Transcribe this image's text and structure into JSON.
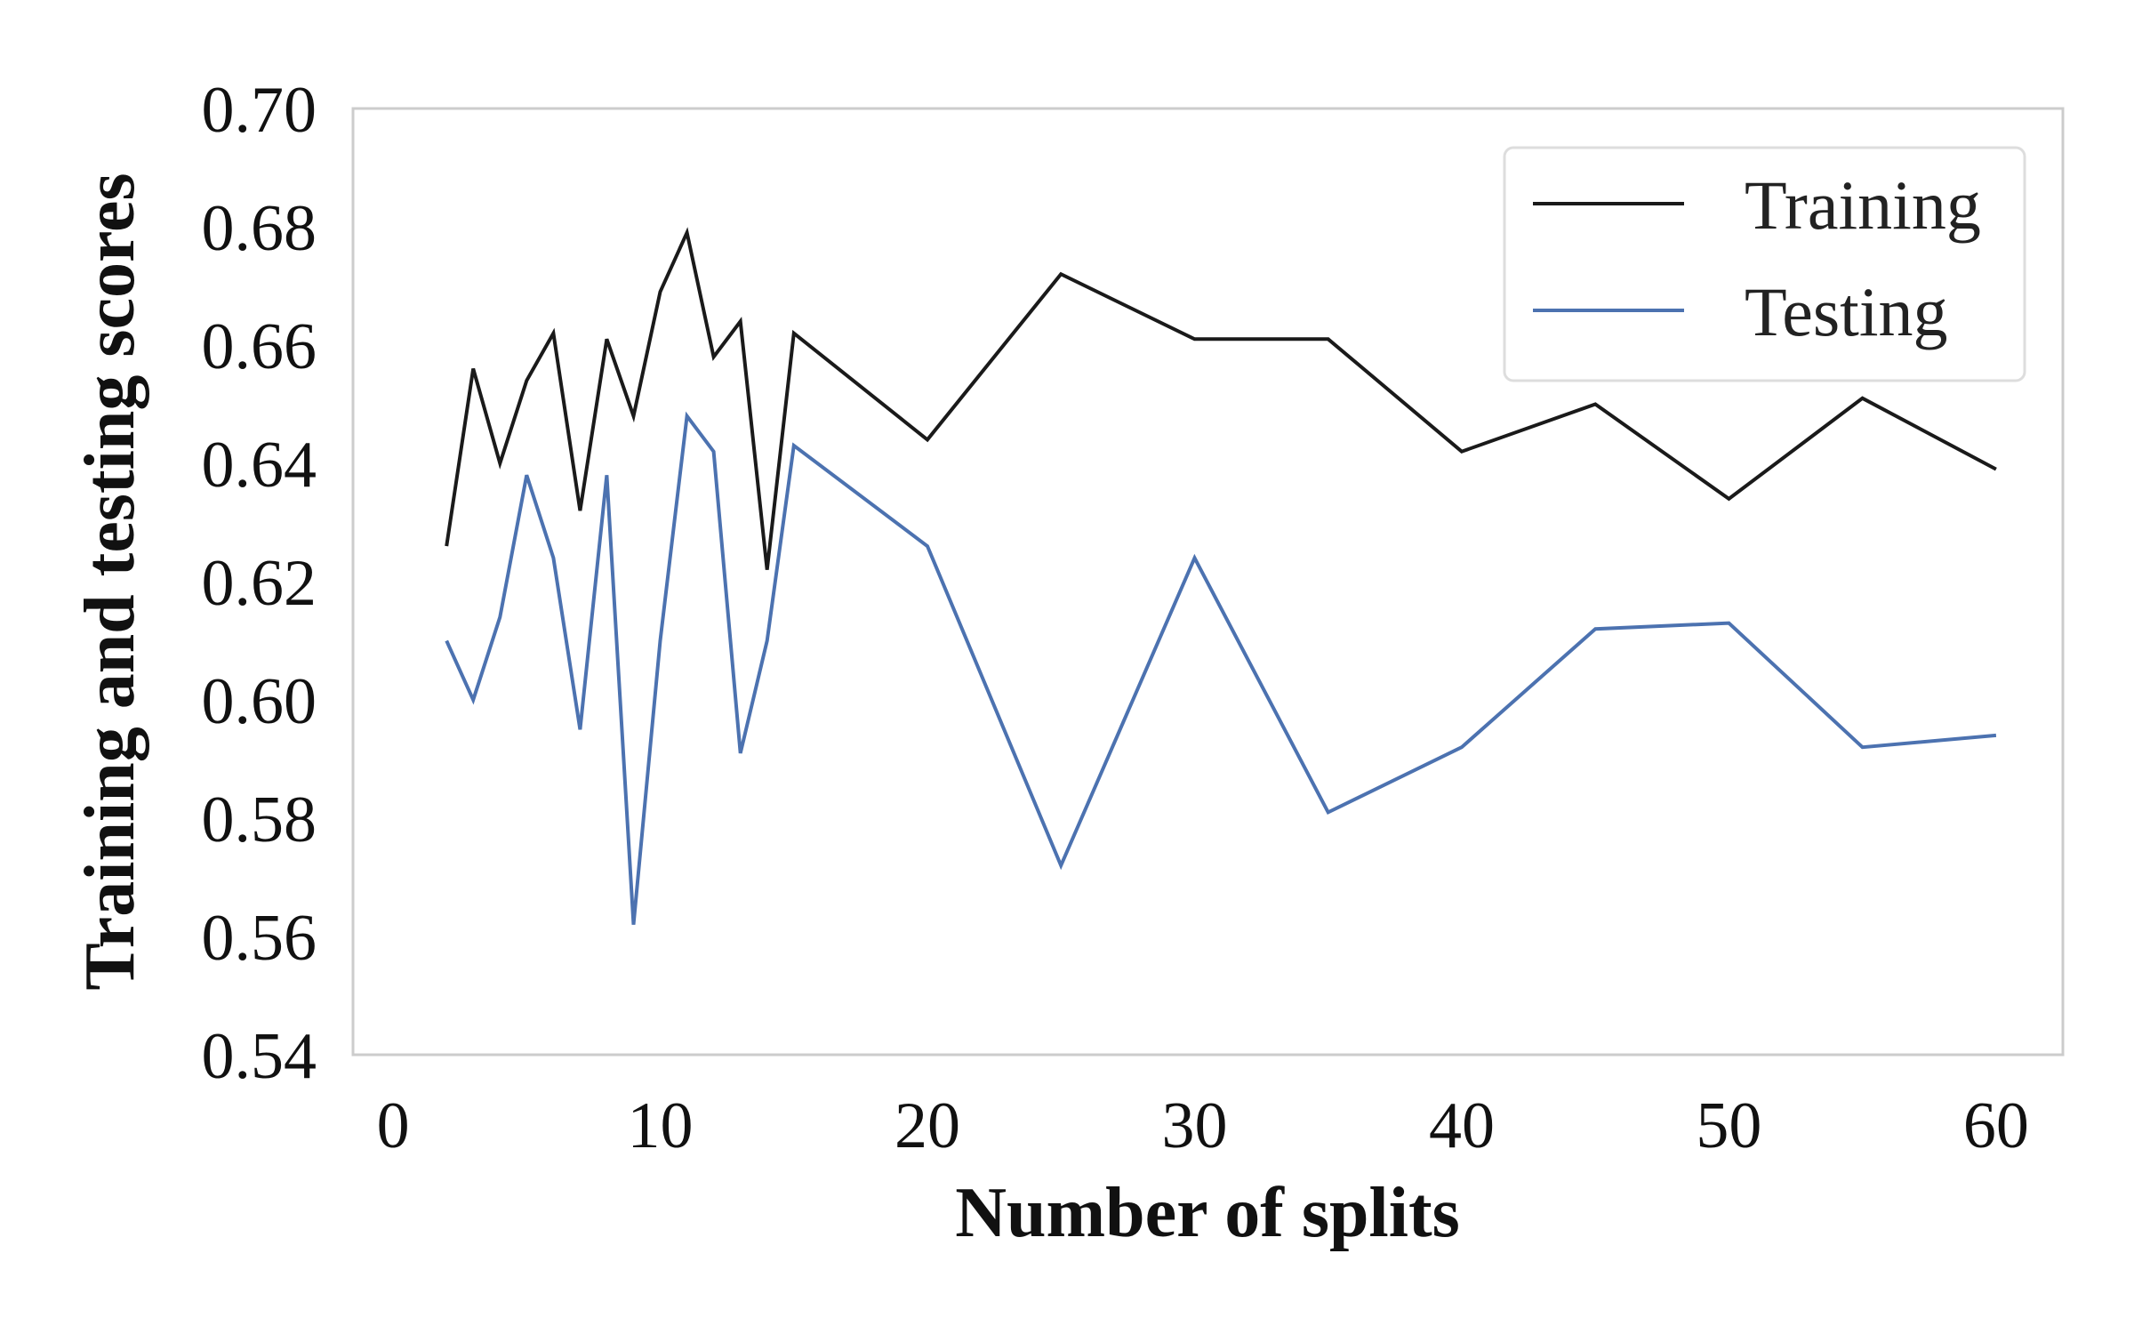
{
  "chart_data": {
    "type": "line",
    "title": "",
    "xlabel": "Number of splits",
    "ylabel": "Training and testing scores",
    "xlim": [
      -1.5,
      62.5
    ],
    "ylim": [
      0.54,
      0.7
    ],
    "x_ticks": [
      "0",
      "10",
      "20",
      "30",
      "40",
      "50",
      "60"
    ],
    "x_tick_values": [
      0,
      10,
      20,
      30,
      40,
      50,
      60
    ],
    "y_ticks": [
      "0.54",
      "0.56",
      "0.58",
      "0.60",
      "0.62",
      "0.64",
      "0.66",
      "0.68",
      "0.70"
    ],
    "y_tick_values": [
      0.54,
      0.56,
      0.58,
      0.6,
      0.62,
      0.64,
      0.66,
      0.68,
      0.7
    ],
    "grid": false,
    "legend_position": "top-right",
    "x": [
      2,
      3,
      4,
      5,
      6,
      7,
      8,
      9,
      10,
      11,
      12,
      13,
      14,
      15,
      20,
      25,
      30,
      35,
      40,
      45,
      50,
      55,
      60
    ],
    "series": [
      {
        "name": "Training",
        "color": "#1a1a1a",
        "values": [
          0.626,
          0.656,
          0.64,
          0.654,
          0.662,
          0.632,
          0.661,
          0.648,
          0.669,
          0.679,
          0.658,
          0.664,
          0.622,
          0.662,
          0.644,
          0.672,
          0.661,
          0.661,
          0.642,
          0.65,
          0.634,
          0.651,
          0.639
        ]
      },
      {
        "name": "Testing",
        "color": "#4c72b0",
        "values": [
          0.61,
          0.6,
          0.614,
          0.638,
          0.624,
          0.595,
          0.638,
          0.562,
          0.61,
          0.648,
          0.642,
          0.591,
          0.61,
          0.643,
          0.626,
          0.572,
          0.624,
          0.581,
          0.592,
          0.612,
          0.613,
          0.592,
          0.594
        ]
      }
    ]
  }
}
